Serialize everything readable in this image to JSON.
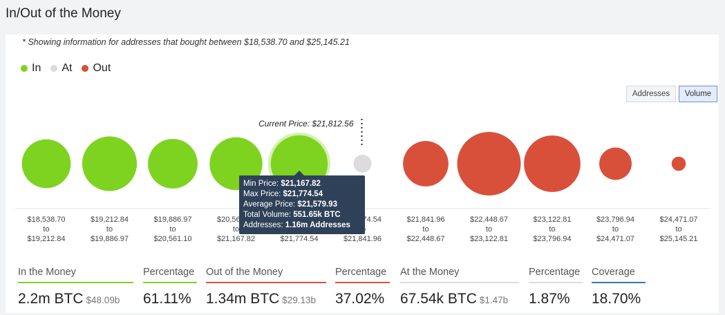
{
  "header": {
    "title": "In/Out of the Money"
  },
  "note": "* Showing information for addresses that bought between $18,538.70 and $25,145.21",
  "legend": [
    {
      "label": "In",
      "color": "#7ed321"
    },
    {
      "label": "At",
      "color": "#dcdcdc"
    },
    {
      "label": "Out",
      "color": "#d9503a"
    }
  ],
  "toggles": {
    "addresses": "Addresses",
    "volume": "Volume",
    "active": "volume"
  },
  "current_price_label": "Current Price: $21,812.56",
  "chart_data": {
    "type": "bubble",
    "current_price": 21812.56,
    "size_metric": "Total Volume (BTC)",
    "buckets": [
      {
        "from": "$18,538.70",
        "to": "$19,212.84",
        "status": "in",
        "size": 0.59
      },
      {
        "from": "$19,212.84",
        "to": "$19,886.97",
        "status": "in",
        "size": 0.74
      },
      {
        "from": "$19,886.97",
        "to": "$20,561.10",
        "status": "in",
        "size": 0.61
      },
      {
        "from": "$20,561.10",
        "to": "$21,167.82",
        "status": "in",
        "size": 0.69
      },
      {
        "from": "$21,167.82",
        "to": "$21,774.54",
        "status": "in",
        "size": 0.8,
        "highlight": true
      },
      {
        "from": "$21,774.54",
        "to": "$21,841.96",
        "status": "at",
        "size": 0.08
      },
      {
        "from": "$21,841.96",
        "to": "$22,448.67",
        "status": "out",
        "size": 0.51
      },
      {
        "from": "$22,448.67",
        "to": "$23,122.81",
        "status": "out",
        "size": 1.0
      },
      {
        "from": "$23,122.81",
        "to": "$23,796.94",
        "status": "out",
        "size": 0.79
      },
      {
        "from": "$23,796.94",
        "to": "$24,471.07",
        "status": "out",
        "size": 0.26
      },
      {
        "from": "$24,471.07",
        "to": "$25,145.21",
        "status": "out",
        "size": 0.05
      }
    ],
    "range_sep": "to"
  },
  "tooltip": {
    "rows": [
      {
        "label": "Min Price:",
        "value": "$21,167.82"
      },
      {
        "label": "Max Price:",
        "value": "$21,774.54"
      },
      {
        "label": "Average Price:",
        "value": "$21,579.93"
      },
      {
        "label": "Total Volume:",
        "value": "551.65k BTC"
      },
      {
        "label": "Addresses:",
        "value": "1.16m Addresses"
      }
    ]
  },
  "stats": [
    {
      "label": "In the Money",
      "value": "2.2m BTC",
      "sub": "$48.09b",
      "color": "#7ed321"
    },
    {
      "label": "Percentage",
      "value": "61.11%",
      "sub": "",
      "color": "#7ed321"
    },
    {
      "label": "Out of the Money",
      "value": "1.34m BTC",
      "sub": "$29.13b",
      "color": "#d9503a"
    },
    {
      "label": "Percentage",
      "value": "37.02%",
      "sub": "",
      "color": "#d9503a"
    },
    {
      "label": "At the Money",
      "value": "67.54k BTC",
      "sub": "$1.47b",
      "color": "#dcdcdc"
    },
    {
      "label": "Percentage",
      "value": "1.87%",
      "sub": "",
      "color": "#dcdcdc"
    },
    {
      "label": "Coverage",
      "value": "18.70%",
      "sub": "",
      "color": "#3b6fd0"
    }
  ],
  "colors": {
    "in": "#7ed321",
    "at": "#dcdcdc",
    "out": "#d9503a",
    "tooltip_bg": "#2e4158"
  }
}
